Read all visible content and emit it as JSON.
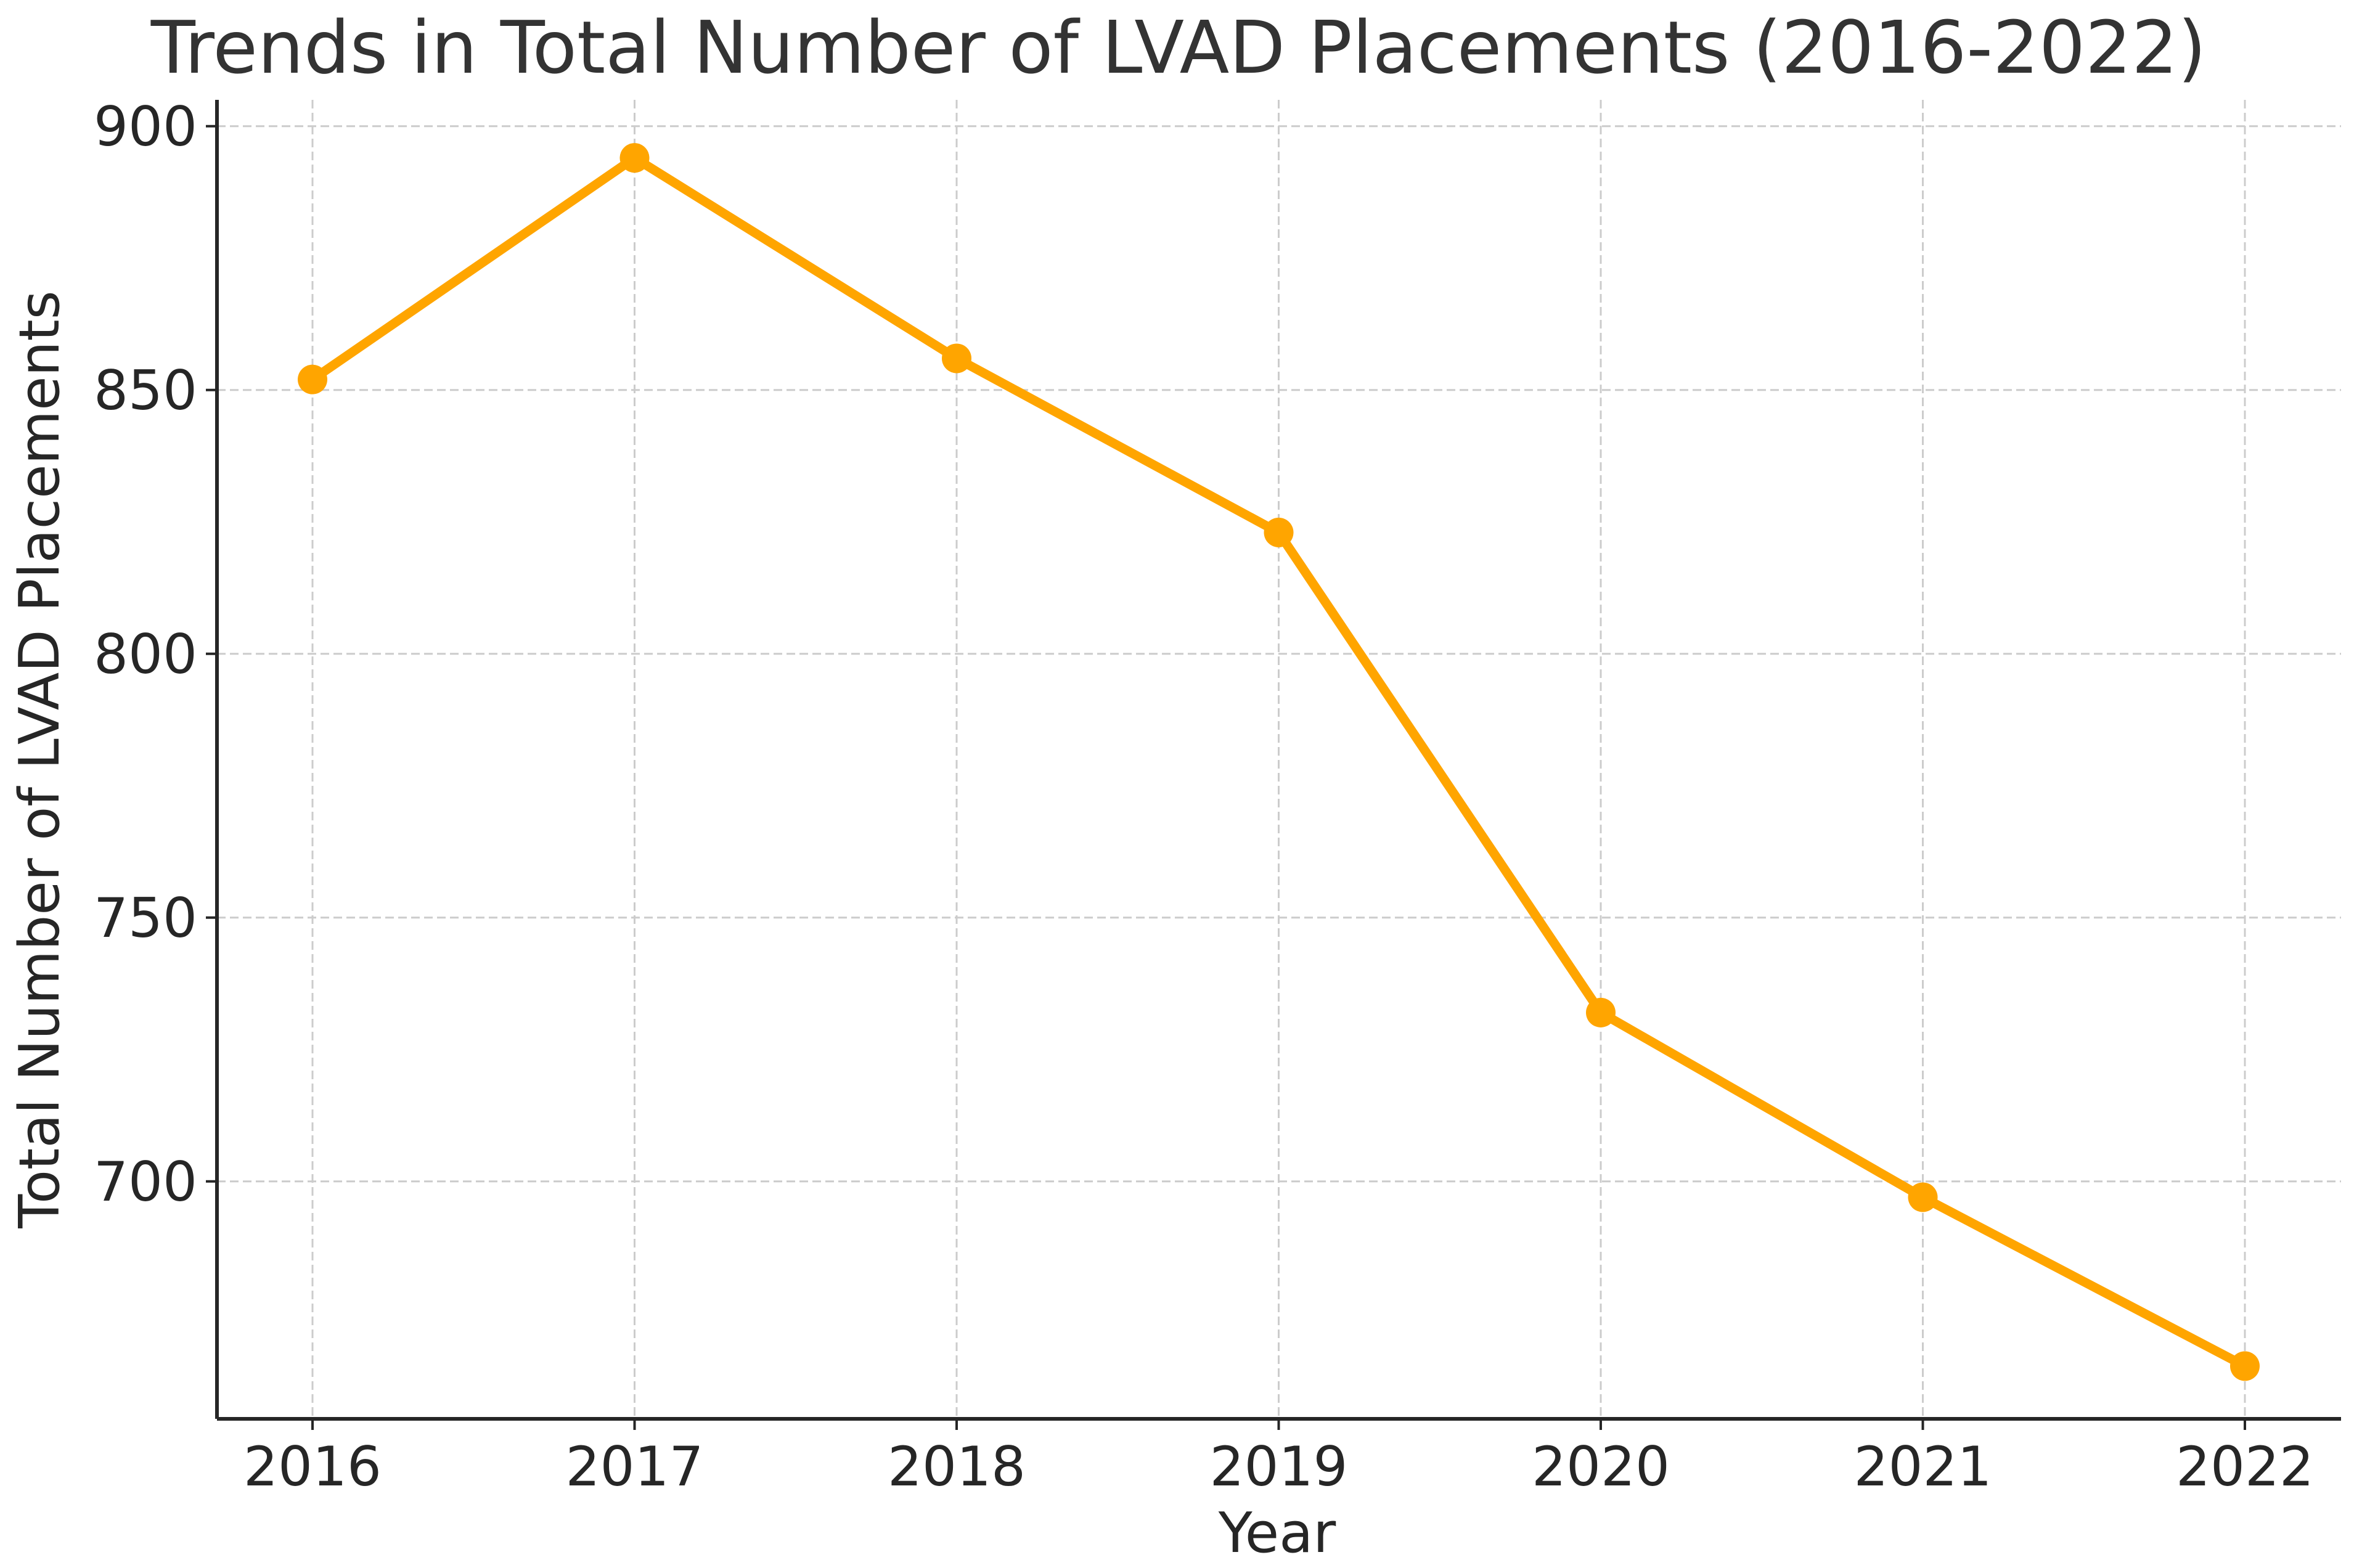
{
  "chart_data": {
    "type": "line",
    "title": "Trends in Total Number of LVAD Placements (2016-2022)",
    "xlabel": "Year",
    "ylabel": "Total Number of LVAD Placements",
    "categories": [
      "2016",
      "2017",
      "2018",
      "2019",
      "2020",
      "2021",
      "2022"
    ],
    "series": [
      {
        "name": "Total Number of LVAD Placements",
        "values": [
          852,
          894,
          856,
          823,
          732,
          697,
          665
        ],
        "color": "#ffa500"
      }
    ],
    "yticks": [
      700,
      750,
      800,
      850,
      900
    ],
    "ylim": [
      655,
      905
    ],
    "grid": true
  }
}
